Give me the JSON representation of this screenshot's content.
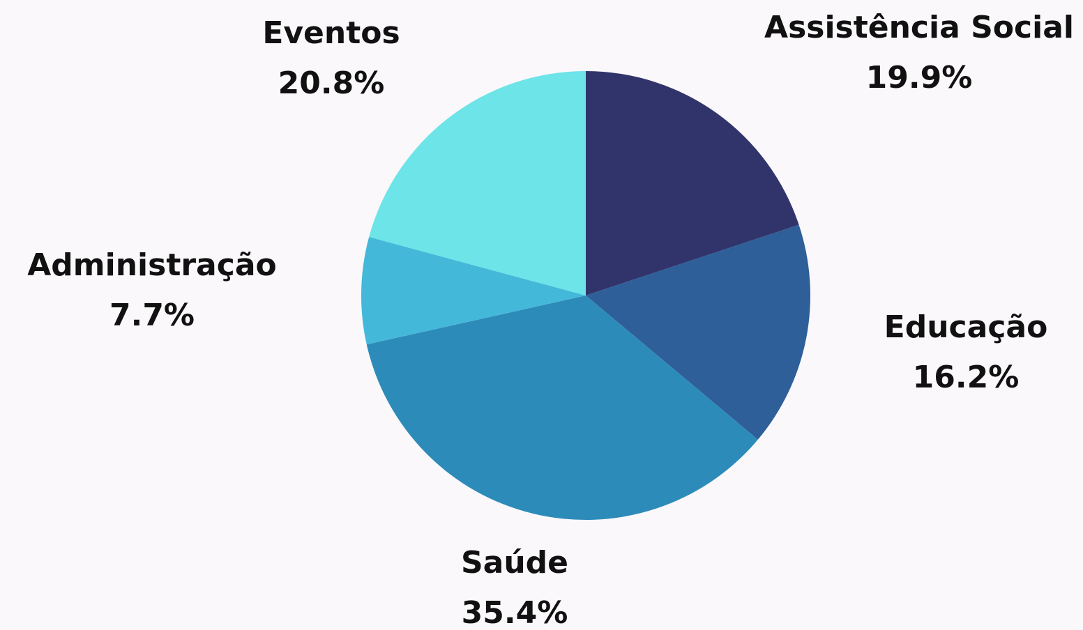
{
  "chart_data": {
    "type": "pie",
    "categories": [
      "Assistência Social",
      "Educação",
      "Saúde",
      "Administração",
      "Eventos"
    ],
    "values": [
      19.9,
      16.2,
      35.4,
      7.7,
      20.8
    ],
    "value_labels": [
      "19.9%",
      "16.2%",
      "35.4%",
      "7.7%",
      "20.8%"
    ],
    "colors": [
      "#31346b",
      "#2e5f98",
      "#2d8bba",
      "#44b8d8",
      "#6ce4e8"
    ]
  }
}
